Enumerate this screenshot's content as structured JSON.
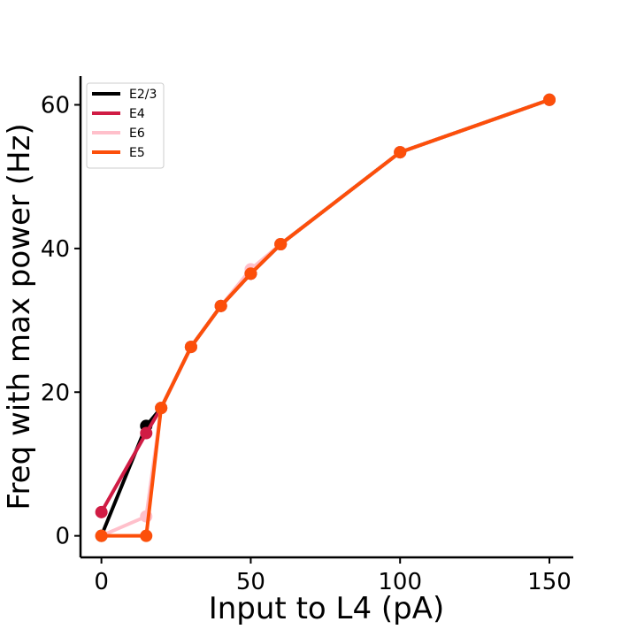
{
  "chart_data": {
    "type": "line",
    "title": "",
    "xlabel": "Input to L4 (pA)",
    "ylabel": "Freq with max power (Hz)",
    "xlim": [
      -7,
      158
    ],
    "ylim": [
      -3,
      64
    ],
    "xticks": [
      0,
      50,
      100,
      150
    ],
    "yticks": [
      0,
      20,
      40,
      60
    ],
    "grid": false,
    "legend_position": "top-left",
    "series": [
      {
        "name": "E2/3",
        "color": "#000000",
        "x": [
          0,
          15,
          20,
          30,
          40,
          50,
          60,
          100,
          150
        ],
        "y": [
          0,
          15.3,
          17.8,
          26.3,
          32.0,
          36.5,
          40.6,
          53.4,
          60.7
        ]
      },
      {
        "name": "E4",
        "color": "#d01c44",
        "x": [
          0,
          15,
          20,
          30,
          40,
          50,
          60,
          100,
          150
        ],
        "y": [
          3.3,
          14.3,
          17.8,
          26.3,
          32.0,
          36.5,
          40.6,
          53.4,
          60.7
        ]
      },
      {
        "name": "E6",
        "color": "#ffc0cb",
        "x": [
          0,
          15,
          20,
          30,
          40,
          50,
          60,
          100,
          150
        ],
        "y": [
          0,
          2.7,
          17.8,
          26.3,
          32.0,
          37.1,
          40.6,
          53.4,
          60.7
        ]
      },
      {
        "name": "E5",
        "color": "#fc4f0a",
        "x": [
          0,
          15,
          20,
          30,
          40,
          50,
          60,
          100,
          150
        ],
        "y": [
          0,
          0,
          17.8,
          26.3,
          32.0,
          36.5,
          40.6,
          53.4,
          60.7
        ]
      }
    ]
  }
}
